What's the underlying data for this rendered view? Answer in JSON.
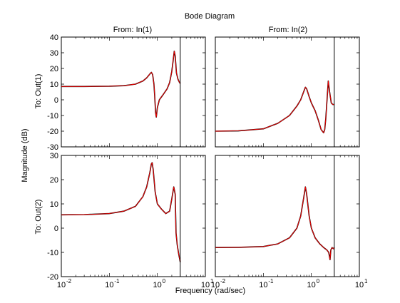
{
  "chart_data": {
    "type": "line",
    "title": "Bode Diagram",
    "xlabel": "Frequency  (rad/sec)",
    "ylabel": "Magnitude (dB)",
    "x_scale": "log",
    "xlim": [
      0.01,
      10
    ],
    "x_tick_labels": [
      "10",
      "10",
      "10",
      "10"
    ],
    "x_tick_exponents": [
      "-2",
      "-1",
      "0",
      "1"
    ],
    "x_tick_values": [
      0.01,
      0.1,
      1,
      10
    ],
    "nyquist_frequency": 3.0,
    "column_labels": [
      "From: In(1)",
      "From: In(2)"
    ],
    "row_labels": [
      "To: Out(1)",
      "To: Out(2)"
    ],
    "colors": {
      "series_a": "#000000",
      "series_b": "#ff0000",
      "nyquist_line": "#000000"
    },
    "panels": [
      {
        "from": "From: In(1)",
        "to": "To: Out(1)",
        "ylim": [
          -30,
          40
        ],
        "y_ticks": [
          "-30",
          "-20",
          "-10",
          "0",
          "10",
          "20",
          "30",
          "40"
        ],
        "y_tick_values": [
          -30,
          -20,
          -10,
          0,
          10,
          20,
          30,
          40
        ],
        "series": [
          {
            "x": [
              0.01,
              0.03,
              0.1,
              0.2,
              0.35,
              0.5,
              0.6,
              0.7,
              0.75,
              0.8,
              0.85,
              0.88,
              0.92,
              0.95,
              1.0,
              1.1,
              1.3,
              1.6,
              1.8,
              2.0,
              2.15,
              2.25,
              2.35,
              2.5,
              2.7,
              2.9,
              3.0
            ],
            "y": [
              8.5,
              8.5,
              8.7,
              9,
              10,
              12,
              14,
              16.5,
              17.5,
              16,
              10,
              3,
              -8,
              -11,
              -5,
              0,
              3,
              7,
              11,
              18,
              26,
              31,
              28,
              17,
              13,
              11,
              10.5
            ]
          }
        ]
      },
      {
        "from": "From: In(2)",
        "to": "To: Out(1)",
        "ylim": [
          -30,
          40
        ],
        "y_ticks": [
          "-30",
          "-20",
          "-10",
          "0",
          "10",
          "20",
          "30",
          "40"
        ],
        "y_tick_values": [
          -30,
          -20,
          -10,
          0,
          10,
          20,
          30,
          40
        ],
        "series": [
          {
            "x": [
              0.01,
              0.03,
              0.1,
              0.2,
              0.35,
              0.5,
              0.6,
              0.7,
              0.75,
              0.8,
              0.9,
              1.0,
              1.2,
              1.4,
              1.6,
              1.8,
              1.9,
              2.0,
              2.15,
              2.25,
              2.4,
              2.6,
              2.8,
              3.0
            ],
            "y": [
              -20,
              -19.8,
              -18.5,
              -15,
              -10,
              -4,
              0,
              5.5,
              8,
              7,
              2,
              -2,
              -7,
              -13,
              -19,
              -21,
              -19,
              -12,
              3,
              12,
              5,
              -2,
              -3,
              -3
            ]
          }
        ]
      },
      {
        "from": "From: In(1)",
        "to": "To: Out(2)",
        "ylim": [
          -20,
          30
        ],
        "y_ticks": [
          "-20",
          "-10",
          "0",
          "10",
          "20",
          "30"
        ],
        "y_tick_values": [
          -20,
          -10,
          0,
          10,
          20,
          30
        ],
        "series": [
          {
            "x": [
              0.01,
              0.03,
              0.1,
              0.2,
              0.35,
              0.5,
              0.6,
              0.7,
              0.75,
              0.78,
              0.82,
              0.9,
              1.0,
              1.2,
              1.5,
              1.8,
              2.0,
              2.2,
              2.35,
              2.45,
              2.6,
              2.8,
              3.0
            ],
            "y": [
              5.5,
              5.6,
              6,
              7,
              9,
              13,
              17,
              23,
              26.5,
              27,
              24,
              15,
              10,
              8,
              6,
              7,
              12,
              17,
              14,
              -2,
              -7,
              -11,
              -14
            ]
          }
        ]
      },
      {
        "from": "From: In(2)",
        "to": "To: Out(2)",
        "ylim": [
          -20,
          30
        ],
        "y_ticks": [
          "-20",
          "-10",
          "0",
          "10",
          "20",
          "30"
        ],
        "y_tick_values": [
          -20,
          -10,
          0,
          10,
          20,
          30
        ],
        "series": [
          {
            "x": [
              0.01,
              0.03,
              0.1,
              0.2,
              0.35,
              0.5,
              0.6,
              0.7,
              0.75,
              0.8,
              0.9,
              1.0,
              1.2,
              1.5,
              1.8,
              2.1,
              2.3,
              2.45,
              2.55,
              2.7,
              2.9,
              3.0
            ],
            "y": [
              -8,
              -7.9,
              -7.6,
              -6.5,
              -4,
              0,
              5,
              13,
              17,
              14,
              5,
              0,
              -4,
              -6.5,
              -8,
              -9,
              -10,
              -13,
              -9,
              -8,
              -8.5,
              -8
            ]
          }
        ]
      }
    ]
  }
}
